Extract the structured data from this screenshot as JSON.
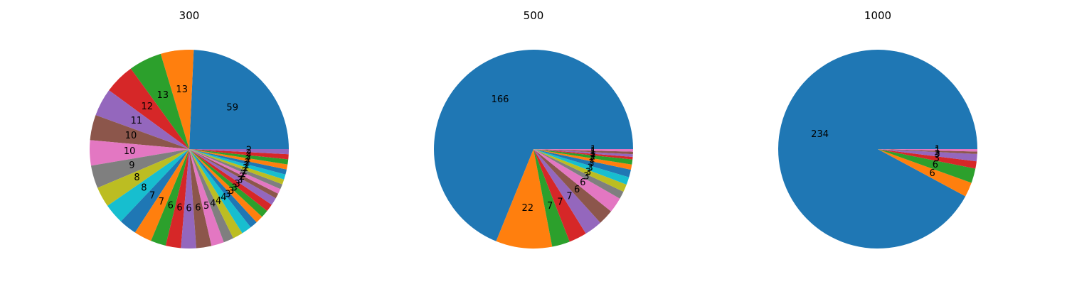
{
  "colors": [
    "#1f77b4",
    "#ff7f0e",
    "#2ca02c",
    "#d62728",
    "#9467bd",
    "#8c564b",
    "#e377c2",
    "#7f7f7f",
    "#bcbd22",
    "#17becf"
  ],
  "chart_data": [
    {
      "type": "pie",
      "title": "300",
      "values": [
        59,
        13,
        13,
        12,
        11,
        10,
        10,
        9,
        8,
        8,
        7,
        7,
        6,
        6,
        6,
        6,
        5,
        4,
        4,
        4,
        3,
        3,
        3,
        3,
        3,
        2,
        2,
        2,
        2,
        2,
        2,
        2,
        2,
        2,
        2
      ],
      "labels": [
        "59",
        "13",
        "13",
        "12",
        "11",
        "10",
        "10",
        "9",
        "8",
        "8",
        "7",
        "7",
        "6",
        "6",
        "6",
        "6",
        "5",
        "4",
        "4",
        "4",
        "3",
        "3",
        "3",
        "3",
        "3",
        "2",
        "2",
        "2",
        "2",
        "2",
        "2",
        "2",
        "2",
        "2",
        "2"
      ],
      "start_angle_deg": 0,
      "direction": "counterclockwise"
    },
    {
      "type": "pie",
      "title": "500",
      "values": [
        166,
        22,
        7,
        7,
        7,
        6,
        6,
        3,
        3,
        3,
        3,
        2,
        2,
        1,
        1,
        1,
        1
      ],
      "labels": [
        "166",
        "22",
        "7",
        "7",
        "7",
        "6",
        "6",
        "3",
        "3",
        "3",
        "3",
        "2",
        "2",
        "1",
        "1",
        "1",
        "1"
      ],
      "start_angle_deg": 0,
      "direction": "counterclockwise"
    },
    {
      "type": "pie",
      "title": "1000",
      "values": [
        234,
        6,
        6,
        3,
        3,
        1,
        1
      ],
      "labels": [
        "234",
        "6",
        "6",
        "3",
        "3",
        "1",
        "1"
      ],
      "start_angle_deg": 0,
      "direction": "counterclockwise"
    }
  ]
}
